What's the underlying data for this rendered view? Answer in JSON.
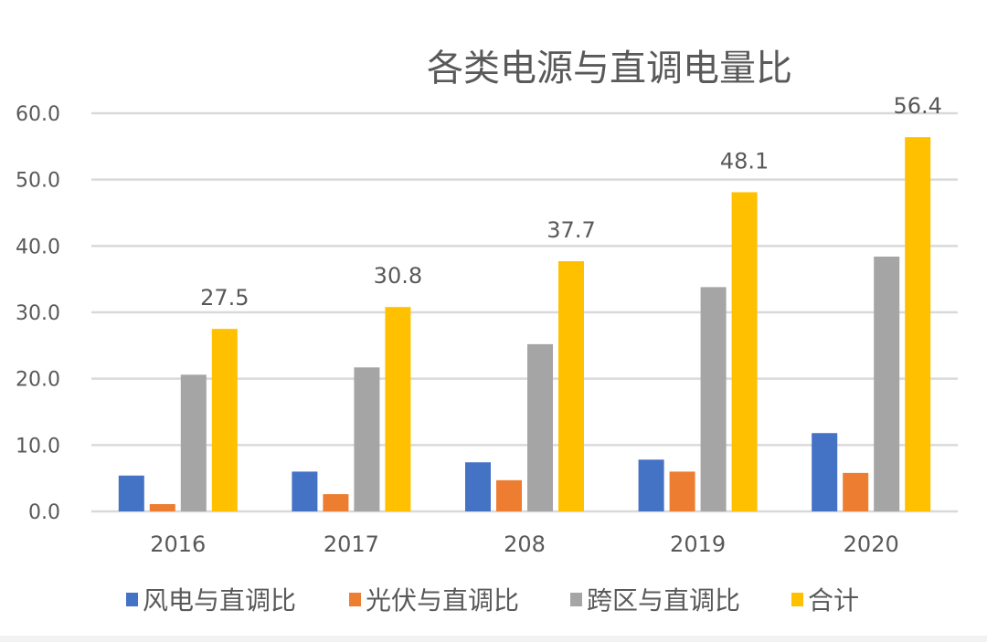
{
  "chart_data": {
    "type": "bar",
    "title": "各类电源与直调电量比",
    "xlabel": "",
    "ylabel": "",
    "ylim": [
      0,
      60
    ],
    "yticks": [
      "0.0",
      "10.0",
      "20.0",
      "30.0",
      "40.0",
      "50.0",
      "60.0"
    ],
    "grid": true,
    "legend_position": "bottom",
    "categories": [
      "2016",
      "2017",
      "208",
      "2019",
      "2020"
    ],
    "series": [
      {
        "name": "风电与直调比",
        "color": "#4472C4",
        "values": [
          5.4,
          6.0,
          7.4,
          7.8,
          11.8
        ]
      },
      {
        "name": "光伏与直调比",
        "color": "#ED7D31",
        "values": [
          1.1,
          2.6,
          4.7,
          6.0,
          5.8
        ]
      },
      {
        "name": "跨区与直调比",
        "color": "#A5A5A5",
        "values": [
          20.6,
          21.7,
          25.2,
          33.8,
          38.4
        ]
      },
      {
        "name": "合计",
        "color": "#FFC000",
        "values": [
          27.5,
          30.8,
          37.7,
          48.1,
          56.4
        ],
        "data_labels": [
          "27.5",
          "30.8",
          "37.7",
          "48.1",
          "56.4"
        ]
      }
    ]
  }
}
